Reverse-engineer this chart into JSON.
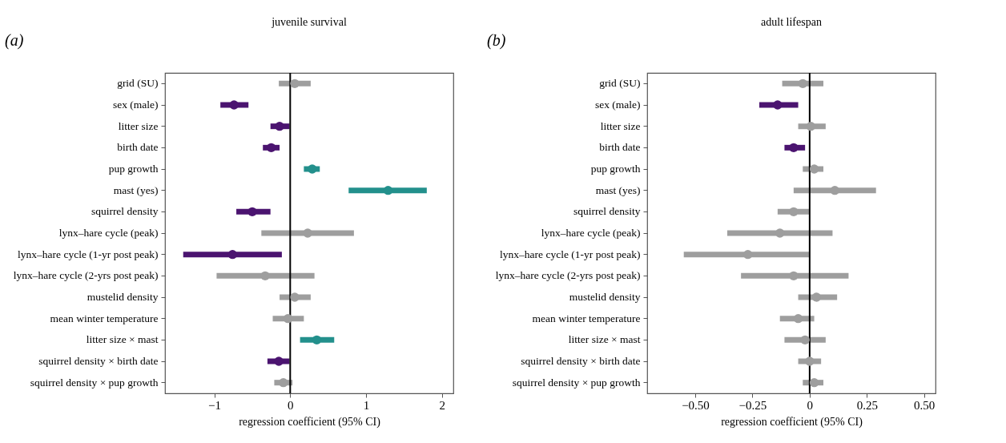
{
  "chart_data": [
    {
      "type": "scatter",
      "orientation": "horizontal",
      "title": "juvenile survival",
      "xlabel": "regression coefficient (95% CI)",
      "annotations": [
        "(a)"
      ],
      "marker": "circle",
      "grid": false,
      "categories": [
        "grid (SU)",
        "sex (male)",
        "litter size",
        "birth date",
        "pup growth",
        "mast (yes)",
        "squirrel density",
        "lynx–hare cycle (peak)",
        "lynx–hare cycle (1-yr post peak)",
        "lynx–hare cycle (2-yrs post peak)",
        "mustelid density",
        "mean winter temperature",
        "litter size × mast",
        "squirrel density × birth date",
        "squirrel density × pup growth"
      ],
      "values": [
        0.06,
        -0.74,
        -0.14,
        -0.25,
        0.29,
        1.29,
        -0.5,
        0.23,
        -0.76,
        -0.33,
        0.06,
        -0.03,
        0.35,
        -0.15,
        -0.09
      ],
      "errors": [
        [
          -0.15,
          0.27
        ],
        [
          -0.92,
          -0.55
        ],
        [
          -0.26,
          -0.01
        ],
        [
          -0.36,
          -0.14
        ],
        [
          0.18,
          0.39
        ],
        [
          0.77,
          1.8
        ],
        [
          -0.71,
          -0.26
        ],
        [
          -0.38,
          0.84
        ],
        [
          -1.41,
          -0.11
        ],
        [
          -0.97,
          0.32
        ],
        [
          -0.14,
          0.27
        ],
        [
          -0.23,
          0.18
        ],
        [
          0.13,
          0.58
        ],
        [
          -0.3,
          -0.01
        ],
        [
          -0.21,
          0.03
        ]
      ],
      "colors": [
        "#9e9e9e",
        "#4b1470",
        "#4b1470",
        "#4b1470",
        "#23908c",
        "#23908c",
        "#4b1470",
        "#9e9e9e",
        "#4b1470",
        "#9e9e9e",
        "#9e9e9e",
        "#9e9e9e",
        "#23908c",
        "#4b1470",
        "#9e9e9e"
      ],
      "xlim": [
        -1.65,
        2.15
      ],
      "xticks": [
        {
          "value": -1,
          "label": "−1"
        },
        0,
        1,
        2
      ],
      "ref_lines": [
        {
          "axis": "x",
          "value": 0,
          "color": "#000000"
        }
      ]
    },
    {
      "type": "scatter",
      "orientation": "horizontal",
      "title": "adult lifespan",
      "xlabel": "regression coefficient (95% CI)",
      "annotations": [
        "(b)"
      ],
      "marker": "circle",
      "grid": false,
      "categories": [
        "grid (SU)",
        "sex (male)",
        "litter size",
        "birth date",
        "pup growth",
        "mast (yes)",
        "squirrel density",
        "lynx–hare cycle (peak)",
        "lynx–hare cycle (1-yr post peak)",
        "lynx–hare cycle (2-yrs post peak)",
        "mustelid density",
        "mean winter temperature",
        "litter size × mast",
        "squirrel density × birth date",
        "squirrel density × pup growth"
      ],
      "values": [
        -0.03,
        -0.14,
        0.005,
        -0.07,
        0.02,
        0.11,
        -0.07,
        -0.13,
        -0.27,
        -0.07,
        0.03,
        -0.05,
        -0.02,
        0.0,
        0.02
      ],
      "errors": [
        [
          -0.12,
          0.06
        ],
        [
          -0.22,
          -0.05
        ],
        [
          -0.05,
          0.07
        ],
        [
          -0.11,
          -0.02
        ],
        [
          -0.03,
          0.06
        ],
        [
          -0.07,
          0.29
        ],
        [
          -0.14,
          0.0
        ],
        [
          -0.36,
          0.1
        ],
        [
          -0.55,
          0.0
        ],
        [
          -0.3,
          0.17
        ],
        [
          -0.05,
          0.12
        ],
        [
          -0.13,
          0.02
        ],
        [
          -0.11,
          0.07
        ],
        [
          -0.05,
          0.05
        ],
        [
          -0.03,
          0.06
        ]
      ],
      "colors": [
        "#9e9e9e",
        "#4b1470",
        "#9e9e9e",
        "#4b1470",
        "#9e9e9e",
        "#9e9e9e",
        "#9e9e9e",
        "#9e9e9e",
        "#9e9e9e",
        "#9e9e9e",
        "#9e9e9e",
        "#9e9e9e",
        "#9e9e9e",
        "#9e9e9e",
        "#9e9e9e"
      ],
      "xlim": [
        -0.71,
        0.55
      ],
      "xticks": [
        {
          "value": -0.5,
          "label": "−0.50"
        },
        {
          "value": -0.25,
          "label": "−0.25"
        },
        0,
        0.25,
        {
          "value": 0.5,
          "label": "0.50"
        }
      ],
      "ref_lines": [
        {
          "axis": "x",
          "value": 0,
          "color": "#000000"
        }
      ]
    }
  ]
}
